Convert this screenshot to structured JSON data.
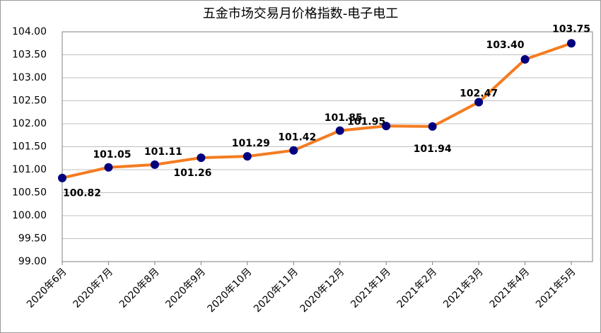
{
  "chart_data": {
    "type": "line",
    "title": "五金市场交易月价格指数-电子电工",
    "categories": [
      "2020年6月",
      "2020年7月",
      "2020年8月",
      "2020年9月",
      "2020年10月",
      "2020年11月",
      "2020年12月",
      "2021年1月",
      "2021年2月",
      "2021年3月",
      "2021年4月",
      "2021年5月"
    ],
    "series": [
      {
        "name": "电子电工",
        "color": "#f47c20",
        "marker_color": "#00007f",
        "values": [
          100.82,
          101.05,
          101.11,
          101.26,
          101.29,
          101.42,
          101.85,
          101.95,
          101.94,
          102.47,
          103.4,
          103.75
        ],
        "value_labels": [
          "100.82",
          "101.05",
          "101.11",
          "101.26",
          "101.29",
          "101.42",
          "101.85",
          "101.95",
          "101.94",
          "102.47",
          "103.40",
          "103.75"
        ]
      }
    ],
    "ylim": [
      99,
      104
    ],
    "yticks": [
      {
        "value": 99,
        "label": "99.00"
      },
      {
        "value": 99.5,
        "label": "99.50"
      },
      {
        "value": 100,
        "label": "100.00"
      },
      {
        "value": 100.5,
        "label": "100.50"
      },
      {
        "value": 101,
        "label": "101.00"
      },
      {
        "value": 101.5,
        "label": "101.50"
      },
      {
        "value": 102,
        "label": "102.00"
      },
      {
        "value": 102.5,
        "label": "102.50"
      },
      {
        "value": 103,
        "label": "103.00"
      },
      {
        "value": 103.5,
        "label": "103.50"
      },
      {
        "value": 104,
        "label": "104.00"
      }
    ],
    "grid": true
  }
}
